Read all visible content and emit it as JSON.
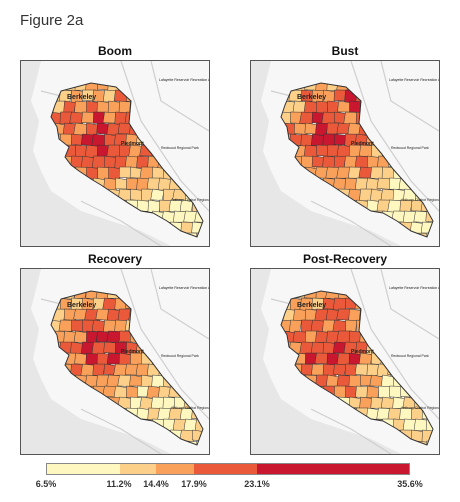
{
  "figure_title": "Figure 2a",
  "panels": [
    {
      "title": "Boom"
    },
    {
      "title": "Bust"
    },
    {
      "title": "Recovery"
    },
    {
      "title": "Post-Recovery"
    }
  ],
  "map_labels": {
    "city_north": "Berkeley",
    "city_center": "Piedmont",
    "park_ne": "Lafayette Reservoir Recreation Area",
    "park_e": "Redwood Regional Park",
    "park_se": "Anthony Chabot Regional Park"
  },
  "legend": {
    "ticks": [
      "6.5%",
      "11.2%",
      "14.4%",
      "17.9%",
      "23.1%",
      "35.6%"
    ],
    "colors": [
      "#fff7c0",
      "#fdd08a",
      "#f9a05a",
      "#ea5a3a",
      "#c8172f"
    ]
  },
  "colors": {
    "water": "#e7e7e7",
    "land": "#f7f7f7",
    "road": "#cfcfcf",
    "tract_border": "#333333"
  }
}
